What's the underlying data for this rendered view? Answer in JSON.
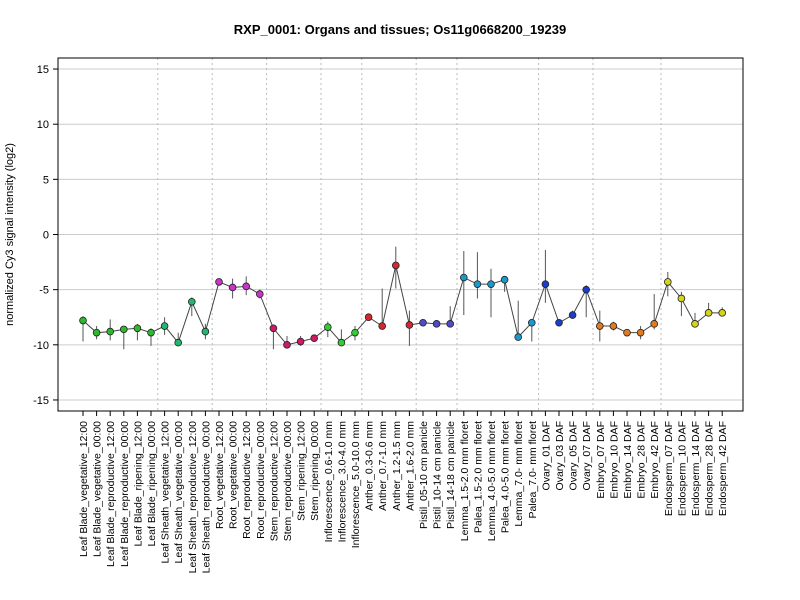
{
  "chart_data": {
    "type": "line",
    "title": "RXP_0001: Organs and tissues; Os11g0668200_19239",
    "ylabel": "normalized Cy3 signal intensity (log2)",
    "xlabel": "",
    "ylim": [
      -16,
      16
    ],
    "yticks": [
      -15,
      -10,
      -5,
      0,
      5,
      10,
      15
    ],
    "grid": true,
    "categories": [
      "Leaf Blade_vegetative_12:00",
      "Leaf Blade_vegetative_00:00",
      "Leaf Blade_reproductive_12:00",
      "Leaf Blade_reproductive_00:00",
      "Leaf Blade_ripening_12:00",
      "Leaf Blade_ripening_00:00",
      "Leaf Sheath_vegetative_12:00",
      "Leaf Sheath_vegetative_00:00",
      "Leaf Sheath_reproductive_12:00",
      "Leaf Sheath_reproductive_00:00",
      "Root_vegetative_12:00",
      "Root_vegetative_00:00",
      "Root_reproductive_12:00",
      "Root_reproductive_00:00",
      "Stem_reproductive_12:00",
      "Stem_reproductive_00:00",
      "Stem_ripening_12:00",
      "Stem_ripening_00:00",
      "Inflorescence_0.6-1.0 mm",
      "Inflorescence_3.0-4.0 mm",
      "Inflorescence_5.0-10.0 mm",
      "Anther_0.3-0.6 mm",
      "Anther_0.7-1.0 mm",
      "Anther_1.2-1.5 mm",
      "Anther_1.6-2.0 mm",
      "Pistil_05-10 cm panicle",
      "Pistil_10-14 cm panicle",
      "Pistil_14-18 cm panicle",
      "Lemma_1.5-2.0 mm floret",
      "Palea_1.5-2.0 mm floret",
      "Lemma_4.0-5.0 mm floret",
      "Palea_4.0-5.0 mm floret",
      "Lemma_7.0- mm floret",
      "Palea_7.0- mm floret",
      "Ovary_01 DAF",
      "Ovary_03 DAF",
      "Ovary_05 DAF",
      "Ovary_07 DAF",
      "Embryo_07 DAF",
      "Embryo_10 DAF",
      "Embryo_14 DAF",
      "Embryo_28 DAF",
      "Embryo_42 DAF",
      "Endosperm_07 DAF",
      "Endosperm_10 DAF",
      "Endosperm_14 DAF",
      "Endosperm_28 DAF",
      "Endosperm_42 DAF"
    ],
    "values": [
      -7.8,
      -8.9,
      -8.8,
      -8.6,
      -8.5,
      -8.9,
      -8.3,
      -9.8,
      -6.1,
      -8.8,
      -4.3,
      -4.8,
      -4.7,
      -5.4,
      -8.5,
      -10.0,
      -9.7,
      -9.4,
      -8.4,
      -9.8,
      -8.9,
      -7.5,
      -8.3,
      -2.8,
      -8.2,
      -8.0,
      -8.1,
      -8.1,
      -3.9,
      -4.5,
      -4.5,
      -4.1,
      -9.3,
      -8.0,
      -4.5,
      -8.0,
      -7.3,
      -5.0,
      -8.3,
      -8.3,
      -8.9,
      -8.9,
      -8.1,
      -4.3,
      -5.8,
      -8.1,
      -7.1,
      -7.1
    ],
    "error_low": [
      -9.7,
      -9.5,
      -9.6,
      -10.4,
      -9.6,
      -10.1,
      -9.1,
      -10.0,
      -7.4,
      -9.5,
      -4.5,
      -5.8,
      -5.5,
      -5.8,
      -10.4,
      -10.2,
      -10.1,
      -9.6,
      -9.3,
      -10.1,
      -9.6,
      -7.8,
      -8.6,
      -4.9,
      -10.1,
      -8.3,
      -8.3,
      -8.4,
      -7.3,
      -5.8,
      -7.5,
      -5.2,
      -9.5,
      -9.7,
      -6.2,
      -8.2,
      -7.6,
      -7.5,
      -9.7,
      -8.7,
      -9.1,
      -9.5,
      -8.6,
      -5.6,
      -7.4,
      -8.4,
      -7.4,
      -7.3
    ],
    "error_high": [
      -7.4,
      -8.3,
      -7.7,
      -8.3,
      -8.1,
      -8.5,
      -7.5,
      -8.9,
      -5.7,
      -8.1,
      -4.1,
      -4.0,
      -3.8,
      -5.0,
      -8.2,
      -9.2,
      -9.2,
      -9.1,
      -7.9,
      -8.6,
      -8.3,
      -7.2,
      -4.9,
      -1.1,
      -6.9,
      -7.7,
      -7.8,
      -6.5,
      -1.5,
      -1.6,
      -3.1,
      -3.8,
      -6.0,
      -7.8,
      -1.4,
      -7.8,
      -6.9,
      -4.6,
      -6.9,
      -7.9,
      -8.7,
      -8.3,
      -5.4,
      -3.4,
      -5.2,
      -7.1,
      -6.2,
      -6.6
    ],
    "point_colors": [
      "#2eb82e",
      "#2eb82e",
      "#2eb82e",
      "#2eb82e",
      "#2eb82e",
      "#2eb82e",
      "#20b870",
      "#20b870",
      "#20b870",
      "#20b870",
      "#cc33cc",
      "#cc33cc",
      "#cc33cc",
      "#cc33cc",
      "#cc1a66",
      "#cc1a66",
      "#cc1a66",
      "#cc1a66",
      "#33cc33",
      "#33cc33",
      "#33cc33",
      "#d6262e",
      "#d6262e",
      "#d6262e",
      "#d6262e",
      "#4d4dc8",
      "#4d4dc8",
      "#4d4dc8",
      "#1a99cc",
      "#1a99cc",
      "#1a99cc",
      "#1a99cc",
      "#1a99cc",
      "#1a99cc",
      "#1a3dcc",
      "#1a3dcc",
      "#1a3dcc",
      "#1a3dcc",
      "#e07b22",
      "#e07b22",
      "#e07b22",
      "#e07b22",
      "#e07b22",
      "#d4d41a",
      "#d4d41a",
      "#d4d41a",
      "#d4d41a",
      "#d4d41a"
    ],
    "group_boundaries_after": [
      5,
      9,
      13,
      17,
      20,
      24,
      27,
      33,
      37,
      42
    ]
  }
}
